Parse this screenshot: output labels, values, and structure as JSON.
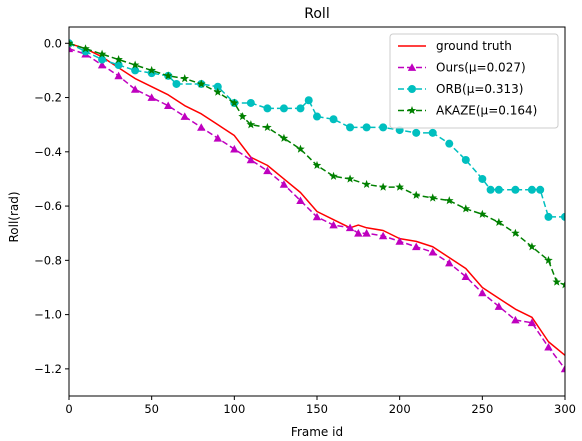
{
  "chart_data": {
    "type": "line",
    "title": "Roll",
    "xlabel": "Frame id",
    "ylabel": "Roll(rad)",
    "xlim": [
      0,
      300
    ],
    "ylim": [
      -1.3,
      0.06
    ],
    "xticks": [
      0,
      50,
      100,
      150,
      200,
      250,
      300
    ],
    "yticks": [
      0.0,
      -0.2,
      -0.4,
      -0.6,
      -0.8,
      -1.0,
      -1.2
    ],
    "xtick_labels": [
      "0",
      "50",
      "100",
      "150",
      "200",
      "250",
      "300"
    ],
    "ytick_labels": [
      "0.0",
      "−0.2",
      "−0.4",
      "−0.6",
      "−0.8",
      "−1.0",
      "−1.2"
    ],
    "grid": false,
    "legend_position": "top-right",
    "series": [
      {
        "name": "ground truth",
        "color": "#ff0000",
        "dash": "solid",
        "marker": "none",
        "x": [
          0,
          10,
          20,
          30,
          40,
          50,
          60,
          70,
          80,
          90,
          100,
          110,
          120,
          130,
          140,
          150,
          160,
          170,
          175,
          180,
          190,
          200,
          210,
          220,
          230,
          240,
          250,
          260,
          270,
          280,
          290,
          300
        ],
        "y": [
          0.0,
          -0.02,
          -0.05,
          -0.09,
          -0.13,
          -0.16,
          -0.19,
          -0.23,
          -0.26,
          -0.3,
          -0.34,
          -0.42,
          -0.45,
          -0.5,
          -0.55,
          -0.62,
          -0.65,
          -0.68,
          -0.67,
          -0.68,
          -0.69,
          -0.72,
          -0.73,
          -0.75,
          -0.79,
          -0.83,
          -0.9,
          -0.94,
          -0.98,
          -1.01,
          -1.1,
          -1.15
        ]
      },
      {
        "name": "Ours(μ=0.027)",
        "color": "#bf00bf",
        "dash": "dashed",
        "marker": "triangle",
        "x": [
          0,
          10,
          20,
          30,
          40,
          50,
          60,
          70,
          80,
          90,
          100,
          110,
          120,
          130,
          140,
          150,
          160,
          170,
          175,
          180,
          190,
          200,
          210,
          220,
          230,
          240,
          250,
          260,
          270,
          280,
          290,
          300
        ],
        "y": [
          -0.02,
          -0.04,
          -0.08,
          -0.12,
          -0.17,
          -0.2,
          -0.23,
          -0.27,
          -0.31,
          -0.35,
          -0.39,
          -0.43,
          -0.47,
          -0.52,
          -0.58,
          -0.64,
          -0.67,
          -0.68,
          -0.7,
          -0.7,
          -0.71,
          -0.73,
          -0.75,
          -0.77,
          -0.81,
          -0.86,
          -0.92,
          -0.97,
          -1.02,
          -1.03,
          -1.12,
          -1.2
        ]
      },
      {
        "name": "ORB(μ=0.313)",
        "color": "#00bfbf",
        "dash": "dashed",
        "marker": "circle",
        "x": [
          0,
          10,
          20,
          30,
          40,
          50,
          60,
          65,
          80,
          90,
          100,
          110,
          120,
          130,
          140,
          145,
          150,
          160,
          170,
          180,
          190,
          200,
          210,
          220,
          230,
          240,
          250,
          255,
          260,
          270,
          280,
          285,
          290,
          300
        ],
        "y": [
          0.0,
          -0.03,
          -0.06,
          -0.08,
          -0.1,
          -0.11,
          -0.12,
          -0.15,
          -0.15,
          -0.16,
          -0.22,
          -0.22,
          -0.24,
          -0.24,
          -0.24,
          -0.21,
          -0.27,
          -0.28,
          -0.31,
          -0.31,
          -0.31,
          -0.32,
          -0.33,
          -0.33,
          -0.37,
          -0.43,
          -0.5,
          -0.54,
          -0.54,
          -0.54,
          -0.54,
          -0.54,
          -0.64,
          -0.64
        ]
      },
      {
        "name": "AKAZE(μ=0.164)",
        "color": "#008000",
        "dash": "dashed",
        "marker": "star",
        "x": [
          0,
          10,
          20,
          30,
          40,
          50,
          60,
          70,
          80,
          90,
          100,
          105,
          110,
          120,
          130,
          140,
          150,
          160,
          170,
          180,
          190,
          200,
          210,
          220,
          230,
          240,
          250,
          260,
          270,
          280,
          290,
          295,
          300
        ],
        "y": [
          0.0,
          -0.02,
          -0.04,
          -0.06,
          -0.08,
          -0.1,
          -0.12,
          -0.13,
          -0.15,
          -0.18,
          -0.22,
          -0.27,
          -0.3,
          -0.31,
          -0.35,
          -0.39,
          -0.45,
          -0.49,
          -0.5,
          -0.52,
          -0.53,
          -0.53,
          -0.56,
          -0.57,
          -0.58,
          -0.61,
          -0.63,
          -0.66,
          -0.7,
          -0.75,
          -0.8,
          -0.88,
          -0.89
        ]
      }
    ]
  }
}
